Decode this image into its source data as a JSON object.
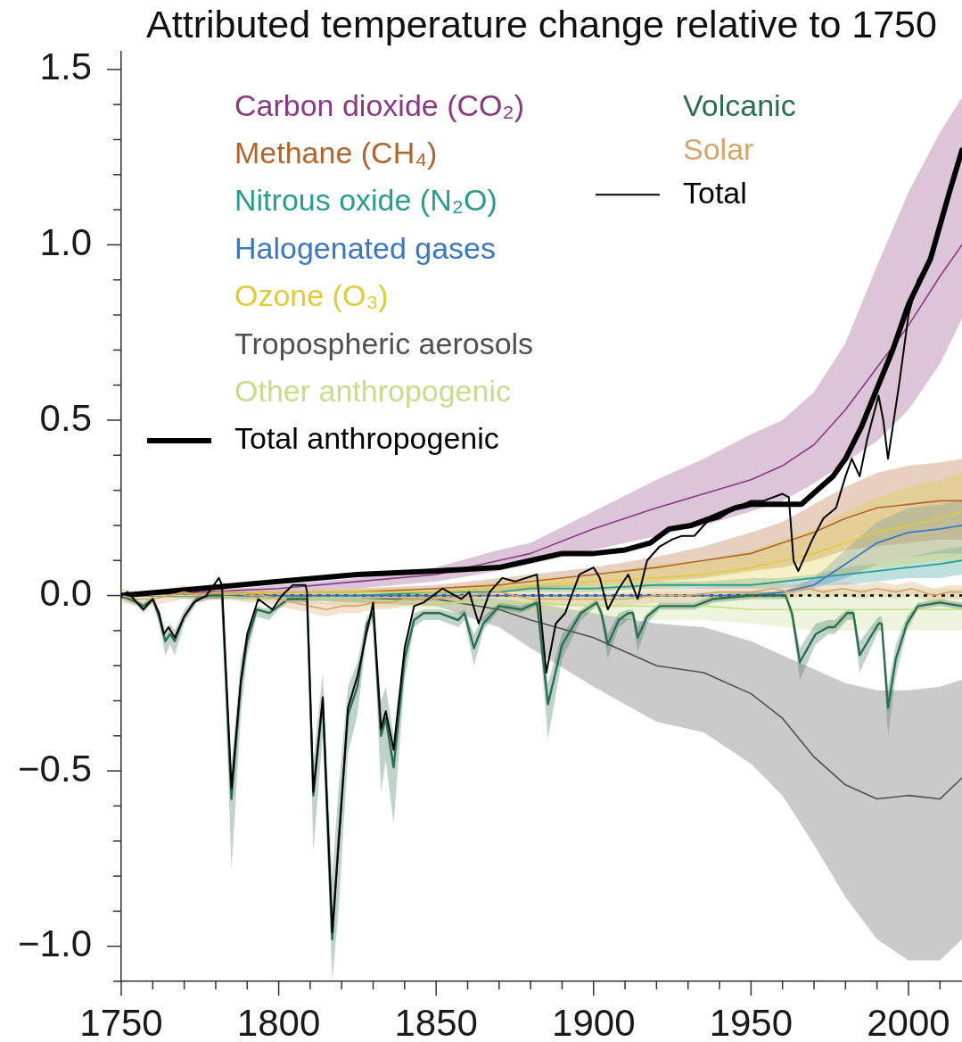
{
  "chart_data": {
    "type": "line",
    "title": "Attributed temperature change relative to 1750",
    "x": [
      1750,
      1775,
      1800,
      1825,
      1850,
      1870,
      1880,
      1900,
      1920,
      1935,
      1950,
      1960,
      1970,
      1980,
      1990,
      2000,
      2010,
      2017
    ],
    "xlim": [
      1750,
      2017
    ],
    "xticks": [
      1750,
      {
        "value": 1760,
        "label": null
      },
      {
        "value": 1770,
        "label": null
      },
      {
        "value": 1780,
        "label": null
      },
      {
        "value": 1790,
        "label": null
      },
      1800,
      {
        "value": 1810,
        "label": null
      },
      {
        "value": 1820,
        "label": null
      },
      {
        "value": 1830,
        "label": null
      },
      {
        "value": 1840,
        "label": null
      },
      1850,
      {
        "value": 1860,
        "label": null
      },
      {
        "value": 1870,
        "label": null
      },
      {
        "value": 1880,
        "label": null
      },
      {
        "value": 1890,
        "label": null
      },
      1900,
      {
        "value": 1910,
        "label": null
      },
      {
        "value": 1920,
        "label": null
      },
      {
        "value": 1930,
        "label": null
      },
      {
        "value": 1940,
        "label": null
      },
      1950,
      {
        "value": 1960,
        "label": null
      },
      {
        "value": 1970,
        "label": null
      },
      {
        "value": 1980,
        "label": null
      },
      {
        "value": 1990,
        "label": null
      },
      2000,
      {
        "value": 2010,
        "label": null
      }
    ],
    "ylim": [
      -1.1,
      1.55
    ],
    "yticks": [
      {
        "value": -1.1,
        "label": null
      },
      {
        "value": -1,
        "label": "−1.0"
      },
      {
        "value": -0.9,
        "label": null
      },
      {
        "value": -0.8,
        "label": null
      },
      {
        "value": -0.7,
        "label": null
      },
      {
        "value": -0.6,
        "label": null
      },
      {
        "value": -0.5,
        "label": "−0.5"
      },
      {
        "value": -0.4,
        "label": null
      },
      {
        "value": -0.3,
        "label": null
      },
      {
        "value": -0.2,
        "label": null
      },
      {
        "value": -0.1,
        "label": null
      },
      {
        "value": 0,
        "label": "0.0"
      },
      {
        "value": 0.1,
        "label": null
      },
      {
        "value": 0.2,
        "label": null
      },
      {
        "value": 0.3,
        "label": null
      },
      {
        "value": 0.4,
        "label": null
      },
      0.5,
      {
        "value": 0.6,
        "label": null
      },
      {
        "value": 0.7,
        "label": null
      },
      {
        "value": 0.8,
        "label": null
      },
      {
        "value": 0.9,
        "label": null
      },
      {
        "value": 1,
        "label": "1.0"
      },
      {
        "value": 1.1,
        "label": null
      },
      {
        "value": 1.2,
        "label": null
      },
      {
        "value": 1.3,
        "label": null
      },
      {
        "value": 1.4,
        "label": null
      },
      1.5
    ],
    "legend": "top left",
    "ref_lines": [
      {
        "axis": "y",
        "value": 0,
        "line_style": "dotted",
        "color": "#000000"
      }
    ],
    "series": [
      {
        "name": "Carbon dioxide (CO₂)",
        "color": "#8a3a82",
        "values": [
          0,
          0.01,
          0.02,
          0.04,
          0.06,
          0.1,
          0.12,
          0.19,
          0.25,
          0.29,
          0.33,
          0.37,
          0.43,
          0.53,
          0.65,
          0.77,
          0.91,
          1.0
        ],
        "lower": [
          0,
          0,
          0.01,
          0.02,
          0.04,
          0.07,
          0.09,
          0.13,
          0.17,
          0.2,
          0.24,
          0.27,
          0.32,
          0.38,
          0.44,
          0.53,
          0.66,
          0.79
        ],
        "upper": [
          0,
          0.01,
          0.03,
          0.05,
          0.08,
          0.13,
          0.15,
          0.24,
          0.33,
          0.39,
          0.46,
          0.5,
          0.58,
          0.72,
          0.94,
          1.15,
          1.32,
          1.42
        ]
      },
      {
        "name": "Methane (CH₄)",
        "color": "#b0652f",
        "values": [
          0,
          0,
          0.01,
          0.01,
          0.02,
          0.03,
          0.04,
          0.06,
          0.08,
          0.1,
          0.12,
          0.15,
          0.18,
          0.22,
          0.25,
          0.26,
          0.27,
          0.27
        ],
        "lower": [
          0,
          0,
          0,
          0.01,
          0.01,
          0.02,
          0.02,
          0.03,
          0.04,
          0.05,
          0.07,
          0.08,
          0.1,
          0.13,
          0.14,
          0.15,
          0.16,
          0.16
        ],
        "upper": [
          0,
          0.01,
          0.01,
          0.02,
          0.03,
          0.05,
          0.06,
          0.08,
          0.11,
          0.14,
          0.18,
          0.21,
          0.26,
          0.31,
          0.35,
          0.37,
          0.38,
          0.39
        ]
      },
      {
        "name": "Nitrous oxide (N₂O)",
        "color": "#2a9d8f",
        "values": [
          0,
          0,
          0,
          0,
          0.01,
          0.01,
          0.02,
          0.02,
          0.03,
          0.03,
          0.03,
          0.04,
          0.05,
          0.06,
          0.07,
          0.08,
          0.09,
          0.1
        ],
        "lower": [
          0,
          0,
          0,
          0,
          0,
          0.01,
          0.01,
          0.01,
          0.02,
          0.02,
          0.02,
          0.02,
          0.03,
          0.03,
          0.04,
          0.05,
          0.05,
          0.06
        ],
        "upper": [
          0,
          0,
          0,
          0.01,
          0.01,
          0.02,
          0.03,
          0.03,
          0.04,
          0.04,
          0.05,
          0.05,
          0.06,
          0.08,
          0.09,
          0.11,
          0.13,
          0.14
        ]
      },
      {
        "name": "Halogenated gases",
        "color": "#3b78c0",
        "values": [
          0,
          0,
          0,
          0,
          0,
          0,
          0,
          0,
          0,
          0,
          0,
          0.01,
          0.03,
          0.09,
          0.15,
          0.18,
          0.19,
          0.2
        ],
        "lower": [
          0,
          0,
          0,
          0,
          0,
          0,
          0,
          0,
          0,
          0,
          0,
          0,
          0.02,
          0.05,
          0.09,
          0.11,
          0.12,
          0.12
        ],
        "upper": [
          0,
          0,
          0,
          0,
          0,
          0,
          0,
          0,
          0,
          0,
          0.01,
          0.01,
          0.05,
          0.13,
          0.21,
          0.25,
          0.26,
          0.27
        ]
      },
      {
        "name": "Ozone (O₃)",
        "color": "#e0cc3a",
        "values": [
          0,
          0,
          0.01,
          0.01,
          0.01,
          0.02,
          0.03,
          0.04,
          0.05,
          0.06,
          0.08,
          0.1,
          0.12,
          0.15,
          0.18,
          0.2,
          0.22,
          0.24
        ],
        "lower": [
          0,
          0,
          0,
          0,
          0,
          0.01,
          0.01,
          0.01,
          0.02,
          0.03,
          0.03,
          0.04,
          0.05,
          0.06,
          0.08,
          0.09,
          0.1,
          0.1
        ],
        "upper": [
          0,
          0.01,
          0.01,
          0.02,
          0.02,
          0.04,
          0.05,
          0.06,
          0.09,
          0.1,
          0.13,
          0.16,
          0.19,
          0.24,
          0.28,
          0.31,
          0.33,
          0.35
        ]
      },
      {
        "name": "Tropospheric aerosols",
        "color": "#505050",
        "values": [
          0,
          0,
          -0.01,
          -0.01,
          -0.01,
          -0.04,
          -0.07,
          -0.12,
          -0.2,
          -0.22,
          -0.28,
          -0.35,
          -0.46,
          -0.54,
          -0.58,
          -0.57,
          -0.58,
          -0.52
        ],
        "lower": [
          0,
          -0.01,
          -0.01,
          -0.02,
          -0.03,
          -0.09,
          -0.15,
          -0.26,
          -0.36,
          -0.39,
          -0.48,
          -0.57,
          -0.71,
          -0.86,
          -0.98,
          -1.04,
          -1.04,
          -0.98
        ],
        "upper": [
          0,
          0,
          0,
          0,
          0,
          -0.01,
          -0.02,
          -0.05,
          -0.08,
          -0.09,
          -0.13,
          -0.17,
          -0.21,
          -0.25,
          -0.27,
          -0.27,
          -0.26,
          -0.24
        ]
      },
      {
        "name": "Other anthropogenic",
        "color": "#c5de8a",
        "values": [
          0,
          0,
          -0.01,
          -0.01,
          -0.02,
          -0.02,
          -0.02,
          -0.03,
          -0.03,
          -0.03,
          -0.04,
          -0.04,
          -0.04,
          -0.04,
          -0.04,
          -0.04,
          -0.04,
          -0.04
        ],
        "lower": [
          0,
          -0.01,
          -0.02,
          -0.03,
          -0.04,
          -0.05,
          -0.05,
          -0.06,
          -0.07,
          -0.07,
          -0.08,
          -0.09,
          -0.1,
          -0.1,
          -0.1,
          -0.1,
          -0.1,
          -0.1
        ],
        "upper": [
          0,
          0,
          0,
          0,
          0,
          0,
          0,
          0,
          0.01,
          0.01,
          0.01,
          0.01,
          0.02,
          0.02,
          0.02,
          0.02,
          0.02,
          0.02
        ]
      },
      {
        "name": "Total anthropogenic",
        "color": "#000000",
        "x": [
          1750,
          1775,
          1800,
          1825,
          1850,
          1870,
          1880,
          1890,
          1900,
          1910,
          1918,
          1924,
          1931,
          1937,
          1945,
          1950,
          1955,
          1961,
          1966,
          1971,
          1976,
          1980,
          1985,
          1990,
          1995,
          2000,
          2007,
          2013,
          2017
        ],
        "values": [
          0,
          0.02,
          0.04,
          0.06,
          0.07,
          0.08,
          0.1,
          0.12,
          0.12,
          0.13,
          0.15,
          0.19,
          0.2,
          0.22,
          0.25,
          0.26,
          0.26,
          0.26,
          0.26,
          0.3,
          0.34,
          0.39,
          0.48,
          0.59,
          0.7,
          0.83,
          0.96,
          1.15,
          1.27
        ]
      },
      {
        "name": "Volcanic",
        "color": "#2b6e4f",
        "x": [
          1750,
          1755,
          1757,
          1760,
          1762,
          1764,
          1765.5,
          1767,
          1770,
          1774,
          1778,
          1782,
          1785,
          1788,
          1790,
          1793,
          1797,
          1800,
          1803,
          1809,
          1811,
          1814,
          1817,
          1819,
          1822,
          1825,
          1828,
          1830,
          1832.5,
          1834,
          1836.5,
          1840,
          1843,
          1846,
          1851,
          1857,
          1859,
          1862,
          1865,
          1870,
          1877,
          1882,
          1883,
          1885.5,
          1890,
          1896,
          1901,
          1902.5,
          1904.5,
          1908,
          1911,
          1912.5,
          1914,
          1917,
          1921,
          1926,
          1932,
          1938,
          1950,
          1961,
          1963,
          1965.5,
          1970.5,
          1974.5,
          1976.5,
          1980.5,
          1982.5,
          1984.5,
          1990.5,
          1991.5,
          1993.5,
          1996,
          1999.5,
          2003,
          2010,
          2017
        ],
        "values": [
          0,
          -0.02,
          -0.03,
          -0.01,
          -0.06,
          -0.13,
          -0.11,
          -0.13,
          -0.06,
          -0.01,
          0,
          0,
          -0.58,
          -0.25,
          -0.13,
          -0.04,
          -0.05,
          -0.03,
          -0.01,
          -0.01,
          -0.57,
          -0.3,
          -0.98,
          -0.7,
          -0.34,
          -0.26,
          -0.08,
          -0.05,
          -0.4,
          -0.35,
          -0.49,
          -0.18,
          -0.07,
          -0.05,
          -0.05,
          -0.07,
          -0.05,
          -0.15,
          -0.08,
          -0.03,
          -0.04,
          -0.02,
          -0.1,
          -0.31,
          -0.14,
          -0.05,
          -0.02,
          -0.05,
          -0.14,
          -0.07,
          -0.05,
          -0.05,
          -0.12,
          -0.06,
          -0.03,
          -0.03,
          -0.03,
          -0.01,
          0,
          0,
          -0.05,
          -0.19,
          -0.11,
          -0.09,
          -0.09,
          -0.05,
          -0.05,
          -0.17,
          -0.08,
          -0.08,
          -0.32,
          -0.18,
          -0.08,
          -0.03,
          -0.02,
          -0.03
        ],
        "lower": [
          -0.01,
          -0.03,
          -0.05,
          -0.02,
          -0.08,
          -0.17,
          -0.14,
          -0.17,
          -0.08,
          -0.02,
          -0.01,
          -0.01,
          -0.78,
          -0.34,
          -0.17,
          -0.06,
          -0.07,
          -0.04,
          -0.02,
          -0.02,
          -0.73,
          -0.4,
          -1.1,
          -0.9,
          -0.45,
          -0.34,
          -0.11,
          -0.07,
          -0.56,
          -0.47,
          -0.65,
          -0.24,
          -0.09,
          -0.07,
          -0.07,
          -0.09,
          -0.07,
          -0.2,
          -0.1,
          -0.04,
          -0.05,
          -0.03,
          -0.13,
          -0.41,
          -0.18,
          -0.07,
          -0.03,
          -0.07,
          -0.18,
          -0.09,
          -0.07,
          -0.07,
          -0.16,
          -0.08,
          -0.04,
          -0.04,
          -0.04,
          -0.02,
          -0.01,
          -0.01,
          -0.07,
          -0.24,
          -0.14,
          -0.11,
          -0.11,
          -0.07,
          -0.07,
          -0.22,
          -0.1,
          -0.1,
          -0.4,
          -0.23,
          -0.1,
          -0.04,
          -0.03,
          -0.04
        ],
        "upper": [
          0.01,
          -0.01,
          -0.02,
          0,
          -0.04,
          -0.1,
          -0.08,
          -0.1,
          -0.04,
          0,
          0.01,
          0.01,
          -0.48,
          -0.18,
          -0.1,
          -0.03,
          -0.04,
          -0.02,
          0,
          0,
          -0.47,
          -0.22,
          -0.8,
          -0.55,
          -0.26,
          -0.19,
          -0.06,
          -0.04,
          -0.3,
          -0.26,
          -0.4,
          -0.13,
          -0.05,
          -0.04,
          -0.04,
          -0.05,
          -0.04,
          -0.11,
          -0.06,
          -0.02,
          -0.03,
          -0.01,
          -0.07,
          -0.25,
          -0.11,
          -0.04,
          -0.01,
          -0.04,
          -0.11,
          -0.05,
          -0.04,
          -0.04,
          -0.09,
          -0.05,
          -0.02,
          -0.02,
          -0.02,
          0,
          0.01,
          0.01,
          -0.04,
          -0.15,
          -0.08,
          -0.07,
          -0.07,
          -0.04,
          -0.04,
          -0.13,
          -0.06,
          -0.06,
          -0.26,
          -0.14,
          -0.06,
          -0.02,
          -0.01,
          -0.02
        ]
      },
      {
        "name": "Solar",
        "color": "#d6a56b",
        "x": [
          1750,
          1755,
          1760,
          1765,
          1770,
          1775,
          1780,
          1785,
          1790,
          1795,
          1800,
          1805,
          1810,
          1815,
          1820,
          1825,
          1830,
          1835,
          1840,
          1850,
          1860,
          1870,
          1880,
          1890,
          1900,
          1910,
          1920,
          1930,
          1940,
          1950,
          1957,
          1962,
          1968,
          1973,
          1979,
          1985,
          1990,
          1996,
          2001,
          2008,
          2013,
          2017
        ],
        "values": [
          0,
          -0.01,
          -0.01,
          0,
          0.01,
          0,
          0.01,
          0.01,
          0,
          0,
          -0.01,
          -0.02,
          -0.03,
          -0.04,
          -0.03,
          -0.03,
          -0.02,
          -0.02,
          -0.01,
          -0.01,
          0,
          0.01,
          -0.01,
          -0.01,
          -0.01,
          -0.01,
          0,
          0,
          0.01,
          0.01,
          0.02,
          0.01,
          0.02,
          0.01,
          0.02,
          0.01,
          0.02,
          0.01,
          0.02,
          0,
          0.01,
          0.01
        ],
        "lower": [
          -0.02,
          -0.03,
          -0.03,
          -0.02,
          -0.01,
          -0.02,
          -0.01,
          -0.01,
          -0.02,
          -0.02,
          -0.03,
          -0.04,
          -0.05,
          -0.06,
          -0.05,
          -0.05,
          -0.04,
          -0.04,
          -0.03,
          -0.03,
          -0.02,
          -0.01,
          -0.03,
          -0.03,
          -0.03,
          -0.03,
          -0.02,
          -0.02,
          -0.01,
          -0.01,
          0,
          -0.01,
          0,
          -0.01,
          0,
          -0.01,
          0,
          -0.01,
          0,
          -0.02,
          -0.01,
          -0.01
        ],
        "upper": [
          0.02,
          0.01,
          0.01,
          0.02,
          0.03,
          0.02,
          0.03,
          0.03,
          0.02,
          0.02,
          0.01,
          0,
          -0.01,
          -0.02,
          -0.01,
          -0.01,
          0,
          0,
          0.01,
          0.01,
          0.02,
          0.03,
          0.01,
          0.01,
          0.01,
          0.01,
          0.02,
          0.02,
          0.03,
          0.03,
          0.04,
          0.03,
          0.04,
          0.03,
          0.04,
          0.03,
          0.04,
          0.03,
          0.04,
          0.02,
          0.03,
          0.03
        ]
      },
      {
        "name": "Total",
        "color": "#000000",
        "x": [
          1750,
          1752,
          1757,
          1760,
          1762,
          1763.5,
          1765,
          1767,
          1770,
          1773,
          1777,
          1781,
          1782,
          1785,
          1788,
          1790,
          1793.5,
          1798,
          1801,
          1804.5,
          1808.5,
          1809,
          1811,
          1814,
          1817,
          1819.5,
          1822,
          1825,
          1830,
          1832.5,
          1834,
          1836.5,
          1840,
          1843,
          1846,
          1852,
          1858,
          1860.5,
          1863.5,
          1867,
          1871,
          1875,
          1882,
          1885,
          1888,
          1891,
          1895.5,
          1900,
          1902,
          1904.5,
          1908,
          1911,
          1914,
          1917,
          1921,
          1925,
          1928,
          1932,
          1936,
          1940,
          1945,
          1950,
          1954,
          1960,
          1962,
          1963.5,
          1965,
          1969.5,
          1973,
          1977,
          1980,
          1982,
          1984.5,
          1987,
          1990.5,
          1992,
          1993.5,
          1997,
          2000,
          2003,
          2007,
          2013,
          2017
        ],
        "values": [
          0,
          0.01,
          -0.04,
          -0.01,
          -0.05,
          -0.11,
          -0.09,
          -0.12,
          -0.06,
          -0.02,
          0,
          0.05,
          0.03,
          -0.55,
          -0.24,
          -0.11,
          -0.01,
          -0.04,
          0,
          0.03,
          0.03,
          0.01,
          -0.56,
          -0.29,
          -0.96,
          -0.65,
          -0.32,
          -0.23,
          -0.02,
          -0.38,
          -0.33,
          -0.44,
          -0.15,
          -0.03,
          -0.02,
          0.02,
          -0.01,
          0.01,
          -0.08,
          0.01,
          0.05,
          0.04,
          0.06,
          -0.22,
          -0.08,
          -0.05,
          0.06,
          0.08,
          0.05,
          -0.04,
          0.02,
          0.06,
          -0.01,
          0.1,
          0.14,
          0.16,
          0.17,
          0.17,
          0.21,
          0.22,
          0.25,
          0.27,
          0.27,
          0.29,
          0.28,
          0.1,
          0.07,
          0.16,
          0.22,
          0.25,
          0.34,
          0.39,
          0.34,
          0.45,
          0.57,
          0.5,
          0.39,
          0.6,
          0.8,
          0.9,
          0.96,
          1.15,
          1.27
        ]
      }
    ]
  }
}
